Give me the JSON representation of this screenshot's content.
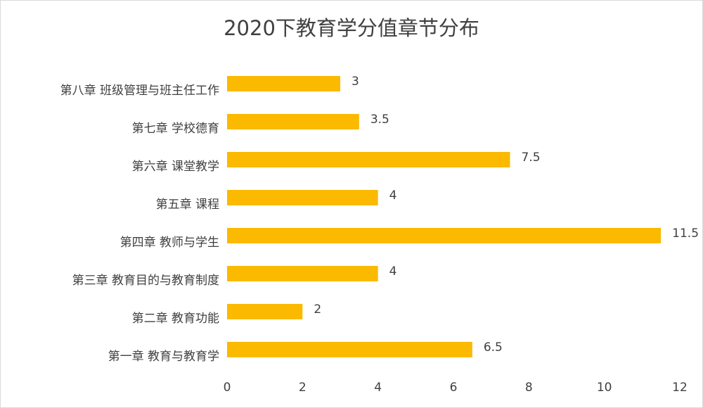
{
  "chart_data": {
    "type": "bar",
    "orientation": "horizontal",
    "title": "2020下教育学分值章节分布",
    "categories": [
      "第八章  班级管理与班主任工作",
      "第七章 学校德育",
      "第六章 课堂教学",
      "第五章 课程",
      "第四章 教师与学生",
      "第三章 教育目的与教育制度",
      "第二章 教育功能",
      "第一章 教育与教育学"
    ],
    "values": [
      3,
      3.5,
      7.5,
      4,
      11.5,
      4,
      2,
      6.5
    ],
    "color": "#fbb900",
    "xlim": [
      0,
      12
    ],
    "xticks": [
      0,
      2,
      4,
      6,
      8,
      10,
      12
    ],
    "grid": false
  }
}
